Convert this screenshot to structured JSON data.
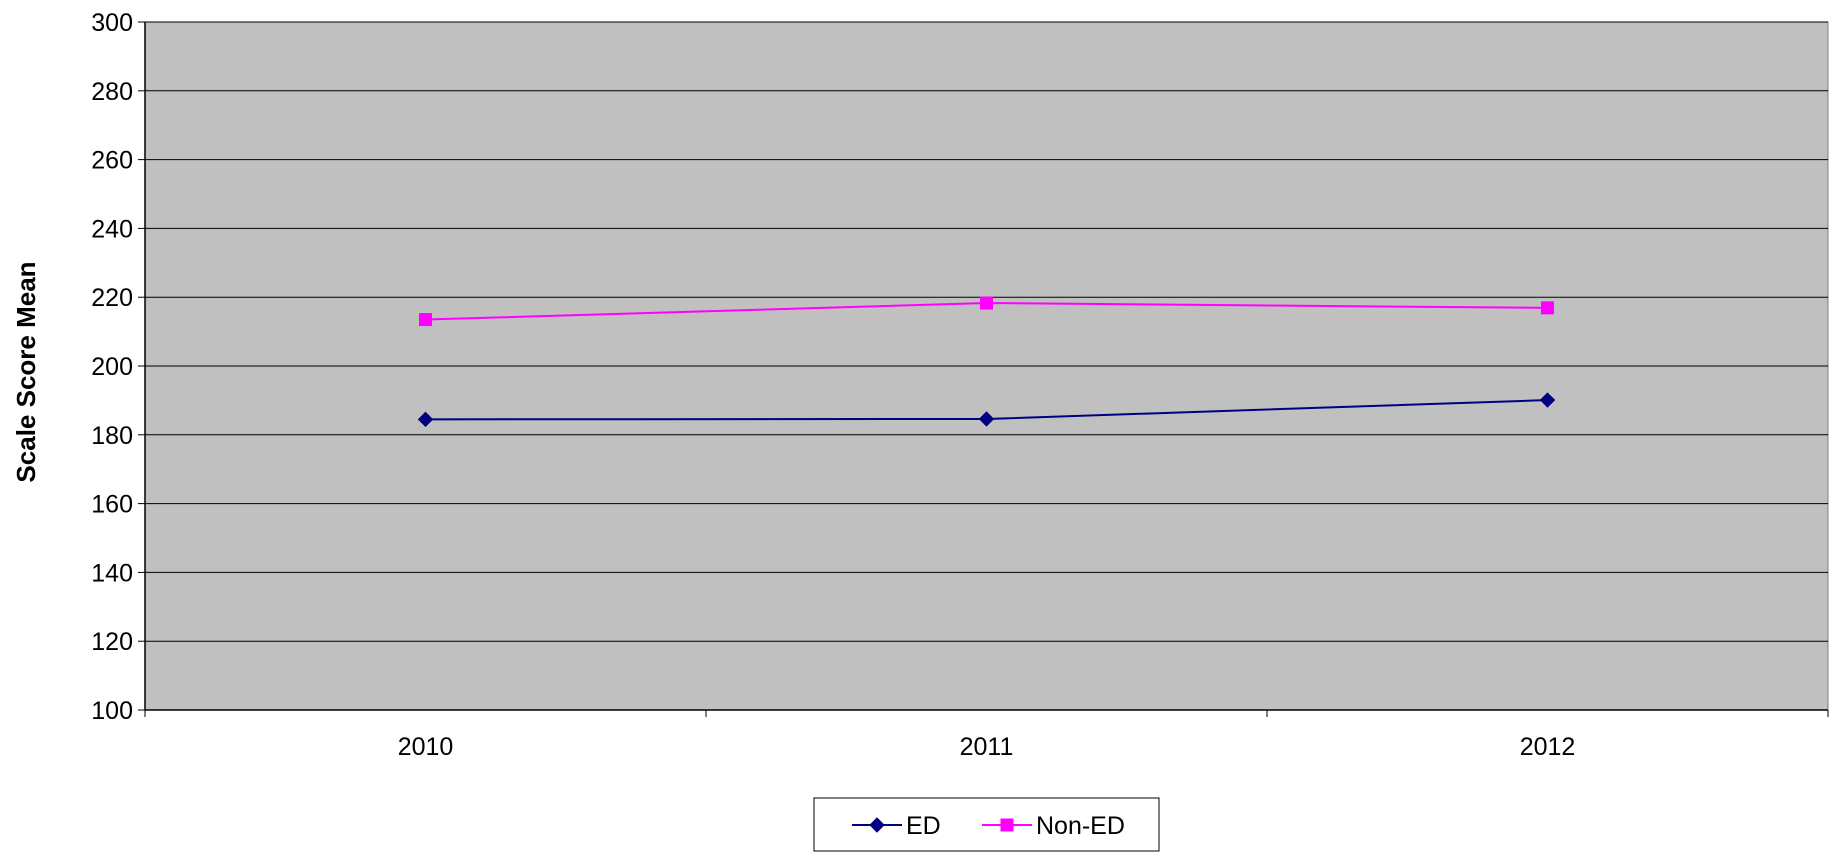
{
  "chart_data": {
    "type": "line",
    "title": "",
    "xlabel": "",
    "ylabel": "Scale Score Mean",
    "categories": [
      "2010",
      "2011",
      "2012"
    ],
    "ylim": [
      100,
      300
    ],
    "yticks": [
      "100",
      "120",
      "140",
      "160",
      "180",
      "200",
      "220",
      "240",
      "260",
      "280",
      "300"
    ],
    "grid": true,
    "plot_background": "#c0c0c0",
    "legend_position": "bottom",
    "series": [
      {
        "name": "ED",
        "color": "#000080",
        "marker": "diamond",
        "values": [
          184.5,
          184.6,
          190.1
        ]
      },
      {
        "name": "Non-ED",
        "color": "#ff00ff",
        "marker": "square",
        "values": [
          213.5,
          218.3,
          216.9
        ]
      }
    ]
  }
}
